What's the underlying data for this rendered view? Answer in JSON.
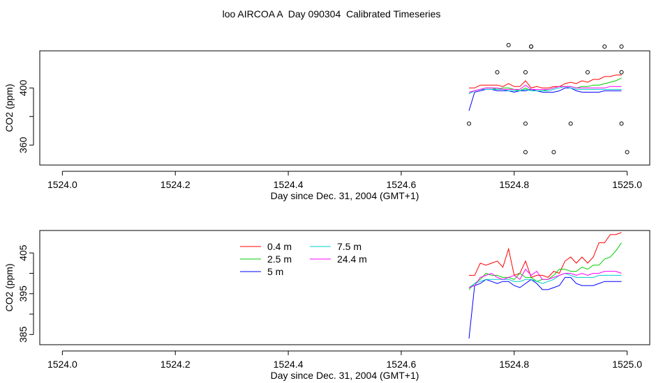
{
  "page_title": "loo AIRCOA A  Day 090304  Calibrated Timeseries",
  "chart_data": [
    {
      "type": "scatter",
      "xlabel": "Day since Dec. 31, 2004 (GMT+1)",
      "ylabel": "CO2 (ppm)",
      "xlim": [
        1523.96,
        1525.04
      ],
      "ylim": [
        346,
        426
      ],
      "x_ticks": [
        "1524.0",
        "1524.2",
        "1524.4",
        "1524.6",
        "1524.8",
        "1525.0"
      ],
      "x_tick_values": [
        1524.0,
        1524.2,
        1524.4,
        1524.6,
        1524.8,
        1525.0
      ],
      "y_ticks": [
        "360",
        "400"
      ],
      "y_tick_values": [
        360,
        380,
        400
      ],
      "markers": {
        "x": [
          1524.72,
          1524.77,
          1524.79,
          1524.82,
          1524.82,
          1524.83,
          1524.83,
          1524.82,
          1524.87,
          1524.9,
          1524.93,
          1524.96,
          1524.99,
          1524.99,
          1524.99,
          1525.0
        ],
        "y": [
          375,
          411,
          430,
          411,
          375,
          429,
          429,
          355,
          355,
          375,
          411,
          429,
          429,
          411,
          375,
          355
        ]
      },
      "series": [
        {
          "name": "0.4 m",
          "color": "#ff0000",
          "x": [
            1524.72,
            1524.73,
            1524.74,
            1524.75,
            1524.76,
            1524.77,
            1524.78,
            1524.79,
            1524.8,
            1524.81,
            1524.82,
            1524.83,
            1524.84,
            1524.85,
            1524.86,
            1524.87,
            1524.88,
            1524.89,
            1524.9,
            1524.91,
            1524.92,
            1524.93,
            1524.94,
            1524.95,
            1524.96,
            1524.97,
            1524.98,
            1524.99
          ],
          "y": [
            400,
            400,
            402,
            402,
            402,
            402,
            401,
            403,
            401,
            401,
            405,
            400,
            401,
            400,
            400,
            401,
            401,
            403,
            404,
            403,
            405,
            404,
            406,
            406,
            408,
            408,
            409,
            409
          ]
        },
        {
          "name": "2.5 m",
          "color": "#00cc00",
          "x": [
            1524.72,
            1524.73,
            1524.74,
            1524.75,
            1524.76,
            1524.77,
            1524.78,
            1524.79,
            1524.8,
            1524.81,
            1524.82,
            1524.83,
            1524.84,
            1524.85,
            1524.86,
            1524.87,
            1524.88,
            1524.89,
            1524.9,
            1524.91,
            1524.92,
            1524.93,
            1524.94,
            1524.95,
            1524.96,
            1524.97,
            1524.98,
            1524.99
          ],
          "y": [
            396,
            398,
            399,
            400,
            400,
            399,
            400,
            400,
            399,
            398,
            400,
            398,
            398,
            398,
            399,
            400,
            401,
            401,
            401,
            400,
            401,
            401,
            402,
            402,
            403,
            404,
            405,
            407
          ]
        },
        {
          "name": "5 m",
          "color": "#0000ff",
          "x": [
            1524.72,
            1524.73,
            1524.74,
            1524.75,
            1524.76,
            1524.77,
            1524.78,
            1524.79,
            1524.8,
            1524.81,
            1524.82,
            1524.83,
            1524.84,
            1524.85,
            1524.86,
            1524.87,
            1524.88,
            1524.89,
            1524.9,
            1524.91,
            1524.92,
            1524.93,
            1524.94,
            1524.95,
            1524.96,
            1524.97,
            1524.98,
            1524.99
          ],
          "y": [
            384,
            397,
            398,
            399,
            399,
            398,
            398,
            398,
            397,
            398,
            398,
            399,
            398,
            397,
            397,
            397,
            398,
            400,
            400,
            398,
            397,
            397,
            397,
            397,
            398,
            398,
            398,
            398
          ]
        },
        {
          "name": "7.5 m",
          "color": "#00cccc",
          "x": [
            1524.72,
            1524.73,
            1524.74,
            1524.75,
            1524.76,
            1524.77,
            1524.78,
            1524.79,
            1524.8,
            1524.81,
            1524.82,
            1524.83,
            1524.84,
            1524.85,
            1524.86,
            1524.87,
            1524.88,
            1524.89,
            1524.9,
            1524.91,
            1524.92,
            1524.93,
            1524.94,
            1524.95,
            1524.96,
            1524.97,
            1524.98,
            1524.99
          ],
          "y": [
            396,
            398,
            399,
            399,
            399,
            399,
            399,
            398,
            398,
            398,
            399,
            398,
            398,
            398,
            398,
            399,
            400,
            401,
            400,
            399,
            399,
            399,
            399,
            399,
            399,
            399,
            399,
            399
          ]
        },
        {
          "name": "24.4 m",
          "color": "#ff00ff",
          "x": [
            1524.72,
            1524.73,
            1524.74,
            1524.75,
            1524.76,
            1524.77,
            1524.78,
            1524.79,
            1524.8,
            1524.81,
            1524.82,
            1524.83,
            1524.84,
            1524.85,
            1524.86,
            1524.87,
            1524.88,
            1524.89,
            1524.9,
            1524.91,
            1524.92,
            1524.93,
            1524.94,
            1524.95,
            1524.96,
            1524.97,
            1524.98,
            1524.99
          ],
          "y": [
            397,
            398,
            399,
            400,
            400,
            400,
            399,
            399,
            399,
            399,
            402,
            399,
            399,
            399,
            399,
            400,
            401,
            401,
            401,
            400,
            400,
            400,
            400,
            400,
            400,
            401,
            401,
            401
          ]
        }
      ]
    },
    {
      "type": "line",
      "xlabel": "Day since Dec. 31, 2004 (GMT+1)",
      "ylabel": "CO2 (ppm)",
      "xlim": [
        1523.96,
        1525.04
      ],
      "ylim": [
        382.5,
        410.5
      ],
      "x_ticks": [
        "1524.0",
        "1524.2",
        "1524.4",
        "1524.6",
        "1524.8",
        "1525.0"
      ],
      "x_tick_values": [
        1524.0,
        1524.2,
        1524.4,
        1524.6,
        1524.8,
        1525.0
      ],
      "y_ticks": [
        "385",
        "395",
        "405"
      ],
      "y_tick_values": [
        385,
        390,
        395,
        400,
        405
      ],
      "legend": "top-center",
      "series": [
        {
          "name": "0.4 m",
          "color": "#ff0000",
          "x": [
            1524.72,
            1524.73,
            1524.74,
            1524.75,
            1524.76,
            1524.77,
            1524.78,
            1524.79,
            1524.8,
            1524.81,
            1524.82,
            1524.83,
            1524.84,
            1524.85,
            1524.86,
            1524.87,
            1524.88,
            1524.89,
            1524.9,
            1524.91,
            1524.92,
            1524.93,
            1524.94,
            1524.95,
            1524.96,
            1524.97,
            1524.98,
            1524.99
          ],
          "y": [
            399.5,
            399.5,
            402.5,
            402,
            402.5,
            403,
            401.5,
            406,
            399.5,
            400,
            403,
            399,
            399.5,
            399.5,
            399,
            400.5,
            400,
            403,
            404,
            402.5,
            404,
            402.5,
            404,
            407.5,
            407.5,
            409.5,
            409.5,
            410
          ]
        },
        {
          "name": "2.5 m",
          "color": "#00cc00",
          "x": [
            1524.72,
            1524.73,
            1524.74,
            1524.75,
            1524.76,
            1524.77,
            1524.78,
            1524.79,
            1524.8,
            1524.81,
            1524.82,
            1524.83,
            1524.84,
            1524.85,
            1524.86,
            1524.87,
            1524.88,
            1524.89,
            1524.9,
            1524.91,
            1524.92,
            1524.93,
            1524.94,
            1524.95,
            1524.96,
            1524.97,
            1524.98,
            1524.99
          ],
          "y": [
            396,
            397.5,
            398.5,
            400,
            399.5,
            399.5,
            399,
            399,
            398.5,
            400,
            399,
            399,
            398,
            398.5,
            398.5,
            399.5,
            401,
            401,
            400.5,
            400.5,
            401.5,
            401,
            402,
            402,
            403.5,
            404,
            405.5,
            407.5
          ]
        },
        {
          "name": "5 m",
          "color": "#0000ff",
          "x": [
            1524.72,
            1524.73,
            1524.74,
            1524.75,
            1524.76,
            1524.77,
            1524.78,
            1524.79,
            1524.8,
            1524.81,
            1524.82,
            1524.83,
            1524.84,
            1524.85,
            1524.86,
            1524.87,
            1524.88,
            1524.89,
            1524.9,
            1524.91,
            1524.92,
            1524.93,
            1524.94,
            1524.95,
            1524.96,
            1524.97,
            1524.98,
            1524.99
          ],
          "y": [
            384,
            397,
            397.5,
            398.5,
            398,
            397.5,
            398,
            398,
            397,
            396.5,
            397.5,
            398.5,
            397.5,
            396,
            396,
            396.5,
            397,
            399,
            399,
            397.5,
            397,
            397,
            397,
            397.5,
            398,
            398,
            398,
            398
          ]
        },
        {
          "name": "7.5 m",
          "color": "#00cccc",
          "x": [
            1524.72,
            1524.73,
            1524.74,
            1524.75,
            1524.76,
            1524.77,
            1524.78,
            1524.79,
            1524.8,
            1524.81,
            1524.82,
            1524.83,
            1524.84,
            1524.85,
            1524.86,
            1524.87,
            1524.88,
            1524.89,
            1524.9,
            1524.91,
            1524.92,
            1524.93,
            1524.94,
            1524.95,
            1524.96,
            1524.97,
            1524.98,
            1524.99
          ],
          "y": [
            396.5,
            397.5,
            398,
            398.5,
            398.5,
            398.5,
            398.5,
            398.5,
            398,
            398,
            398.5,
            398.5,
            398,
            397.5,
            398,
            398.5,
            399.5,
            400,
            399.5,
            399,
            399,
            399,
            399,
            399.5,
            399.5,
            399.5,
            399.5,
            399.5
          ]
        },
        {
          "name": "24.4 m",
          "color": "#ff00ff",
          "x": [
            1524.72,
            1524.73,
            1524.74,
            1524.75,
            1524.76,
            1524.77,
            1524.78,
            1524.79,
            1524.8,
            1524.81,
            1524.82,
            1524.83,
            1524.84,
            1524.85,
            1524.86,
            1524.87,
            1524.88,
            1524.89,
            1524.9,
            1524.91,
            1524.92,
            1524.93,
            1524.94,
            1524.95,
            1524.96,
            1524.97,
            1524.98,
            1524.99
          ],
          "y": [
            396.5,
            397,
            399,
            399.5,
            400,
            399,
            398.5,
            399,
            399.5,
            398.5,
            401,
            399.5,
            400.5,
            398.5,
            398.5,
            399,
            399.5,
            400,
            400,
            399.5,
            400,
            399.5,
            400,
            400,
            400.5,
            400.5,
            400.5,
            400
          ]
        }
      ]
    }
  ]
}
